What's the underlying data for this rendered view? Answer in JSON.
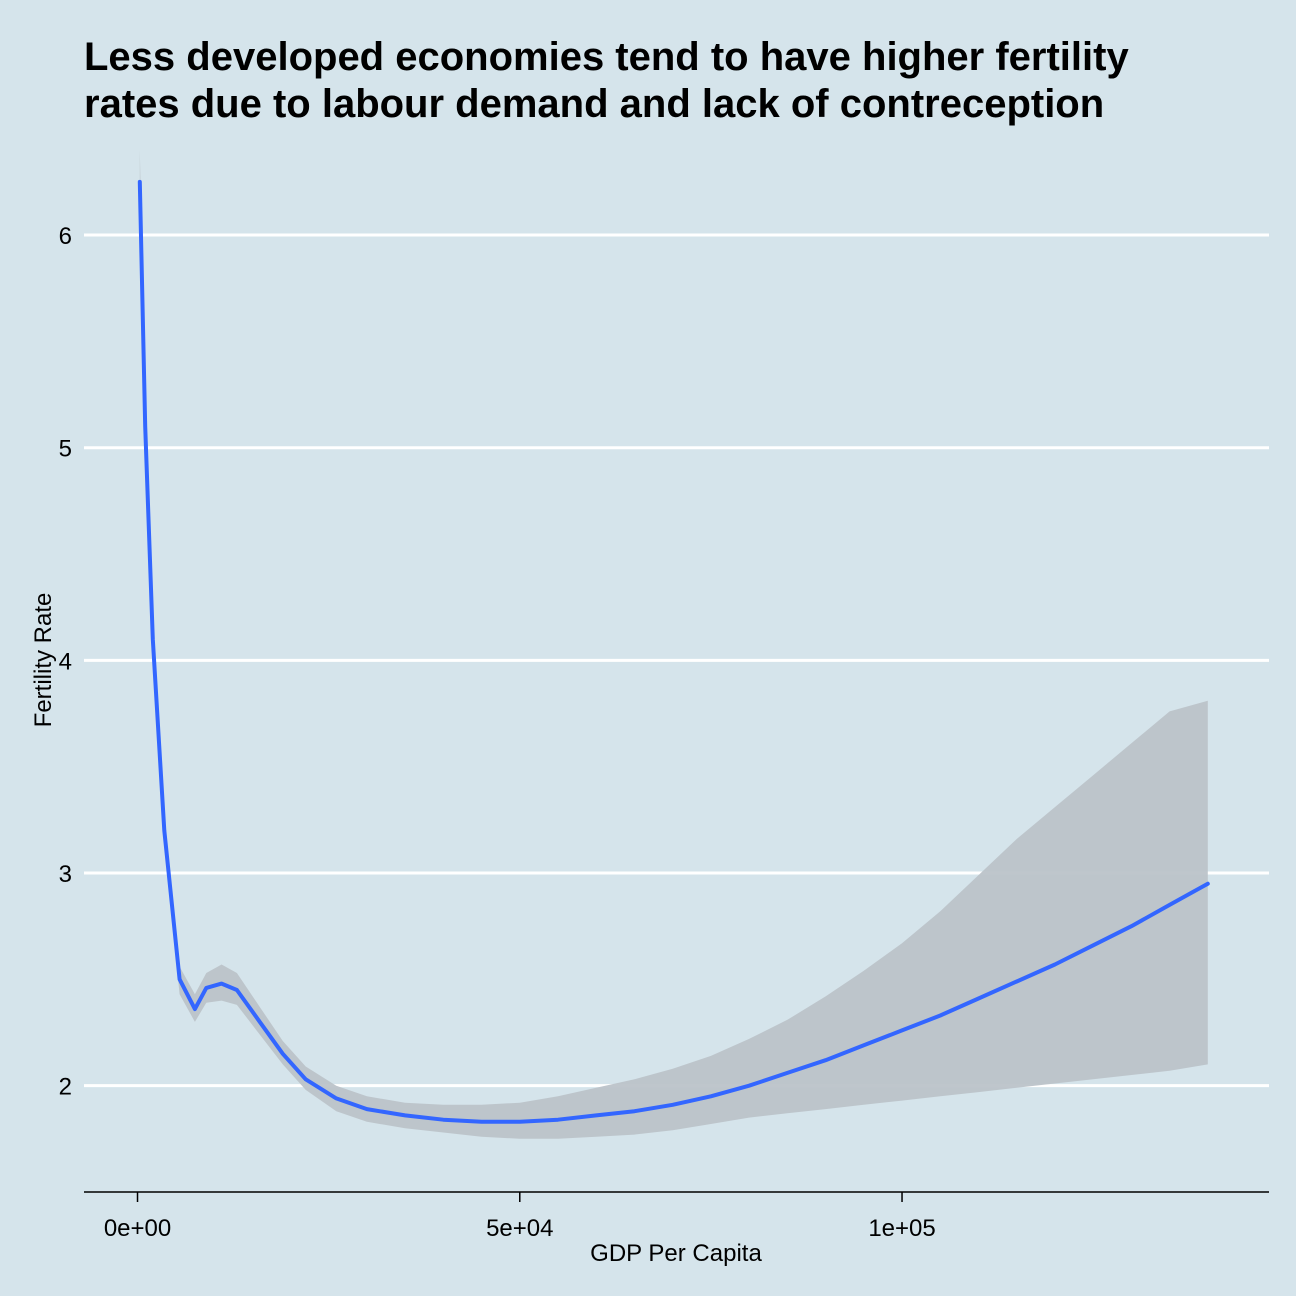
{
  "chart_data": {
    "type": "line",
    "title": "Less developed economies tend to have higher fertility\nrates due to labour demand and lack of contreception",
    "xlabel": "GDP Per Capita",
    "ylabel": "Fertility Rate",
    "xlim": [
      -7000,
      148000
    ],
    "ylim": [
      1.5,
      6.4
    ],
    "x_ticks": [
      {
        "value": 0,
        "label": "0e+00"
      },
      {
        "value": 50000,
        "label": "5e+04"
      },
      {
        "value": 100000,
        "label": "1e+05"
      }
    ],
    "y_ticks": [
      {
        "value": 2,
        "label": "2"
      },
      {
        "value": 3,
        "label": "3"
      },
      {
        "value": 4,
        "label": "4"
      },
      {
        "value": 5,
        "label": "5"
      },
      {
        "value": 6,
        "label": "6"
      }
    ],
    "grid": {
      "horizontal_major": true,
      "vertical": false
    },
    "legend": "none",
    "colors": {
      "background": "#d5e4eb",
      "line": "#3366ff",
      "ribbon": "#bcc3c9",
      "grid": "#ffffff",
      "axis": "#000000"
    },
    "series": [
      {
        "x": [
          300,
          1000,
          2000,
          3500,
          5500,
          7500,
          9000,
          11000,
          13000,
          16000,
          19000,
          22000,
          26000,
          30000,
          35000,
          40000,
          45000,
          50000,
          55000,
          60000,
          65000,
          70000,
          75000,
          80000,
          85000,
          90000,
          95000,
          100000,
          105000,
          110000,
          115000,
          120000,
          125000,
          130000,
          135000,
          140000
        ],
        "y": [
          6.25,
          5.1,
          4.1,
          3.2,
          2.5,
          2.36,
          2.46,
          2.48,
          2.45,
          2.3,
          2.15,
          2.03,
          1.94,
          1.89,
          1.86,
          1.84,
          1.83,
          1.83,
          1.84,
          1.86,
          1.88,
          1.91,
          1.95,
          2.0,
          2.06,
          2.12,
          2.19,
          2.26,
          2.33,
          2.41,
          2.49,
          2.57,
          2.66,
          2.75,
          2.85,
          2.95
        ],
        "ci_lower": [
          6.1,
          5.0,
          4.05,
          3.15,
          2.43,
          2.3,
          2.39,
          2.4,
          2.38,
          2.24,
          2.1,
          1.98,
          1.88,
          1.83,
          1.8,
          1.78,
          1.76,
          1.75,
          1.75,
          1.76,
          1.77,
          1.79,
          1.82,
          1.85,
          1.87,
          1.89,
          1.91,
          1.93,
          1.95,
          1.97,
          1.99,
          2.01,
          2.03,
          2.05,
          2.07,
          2.1
        ],
        "ci_upper": [
          6.4,
          5.2,
          4.15,
          3.25,
          2.56,
          2.43,
          2.53,
          2.57,
          2.53,
          2.37,
          2.21,
          2.09,
          2.0,
          1.95,
          1.92,
          1.91,
          1.91,
          1.92,
          1.95,
          1.99,
          2.03,
          2.08,
          2.14,
          2.22,
          2.31,
          2.42,
          2.54,
          2.67,
          2.82,
          2.99,
          3.16,
          3.31,
          3.46,
          3.61,
          3.76,
          3.81
        ]
      }
    ]
  }
}
